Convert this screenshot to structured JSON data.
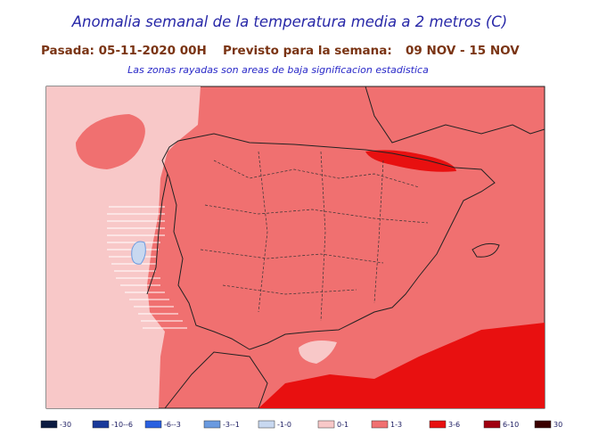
{
  "title": "Anomalia semanal de la temperatura media a 2 metros (C)",
  "run_date": "Pasada: 05-11-2020 00H",
  "forecast_label": "Previsto para la semana:",
  "forecast_period": "09 NOV - 15 NOV",
  "note": "Las zonas rayadas son areas de baja significacion estadistica",
  "legend": [
    {
      "label": "-30",
      "color": "#0b1a40"
    },
    {
      "label": "-10--6",
      "color": "#1a3a9a"
    },
    {
      "label": "-6--3",
      "color": "#2a60e0"
    },
    {
      "label": "-3--1",
      "color": "#6a9ae0"
    },
    {
      "label": "-1-0",
      "color": "#c8d8f0"
    },
    {
      "label": "0-1",
      "color": "#f8c8c8"
    },
    {
      "label": "1-3",
      "color": "#f07070"
    },
    {
      "label": "3-6",
      "color": "#e81010"
    },
    {
      "label": "6-10",
      "color": "#a00010"
    },
    {
      "label": "30",
      "color": "#3a0000"
    }
  ]
}
